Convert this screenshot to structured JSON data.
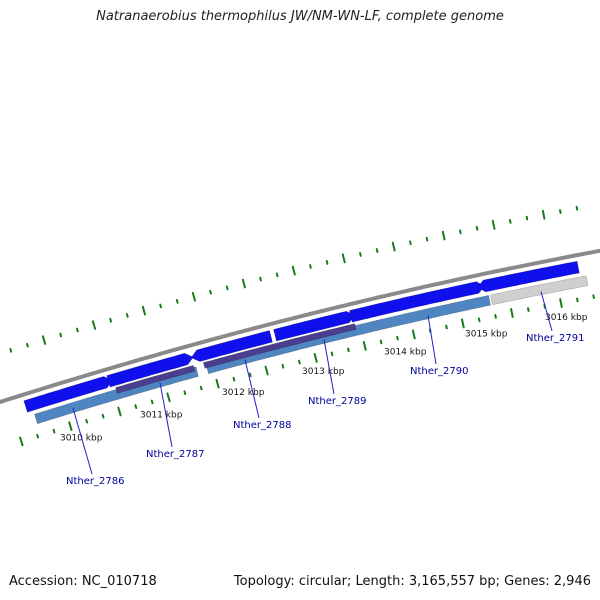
{
  "title": "Natranaerobius thermophilus JW/NM-WN-LF, complete genome",
  "footer": {
    "accession": "Accession: NC_010718",
    "summary": "Topology: circular; Length: 3,165,557 bp; Genes: 2,946"
  },
  "colors": {
    "backbone": "#8a8a8a",
    "forward_gene": "#1010ee",
    "reverse_gene": "#4f85c0",
    "overlap_band": "#4a3f8e",
    "pseudo_gene": "#cfcfcf",
    "tick": "#1a7a1a",
    "label": "#00009a"
  },
  "ticks": [
    {
      "label": "3010 kbp"
    },
    {
      "label": "3011 kbp"
    },
    {
      "label": "3012 kbp"
    },
    {
      "label": "3013 kbp"
    },
    {
      "label": "3014 kbp"
    },
    {
      "label": "3015 kbp"
    },
    {
      "label": "3016 kbp"
    }
  ],
  "genes": [
    {
      "label": "Nther_2786"
    },
    {
      "label": "Nther_2787"
    },
    {
      "label": "Nther_2788"
    },
    {
      "label": "Nther_2789"
    },
    {
      "label": "Nther_2790"
    },
    {
      "label": "Nther_2791"
    }
  ]
}
